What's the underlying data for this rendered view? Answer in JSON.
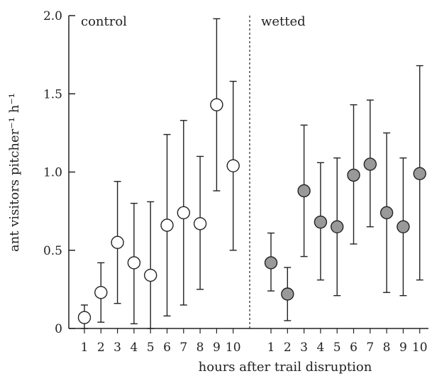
{
  "chart_data": {
    "type": "scatter",
    "xlabel": "hours after trail disruption",
    "ylabel": "ant visitors pitcher⁻¹ h⁻¹",
    "ylim": [
      0,
      2.0
    ],
    "yticks": [
      "0",
      "0.5",
      "1.0",
      "1.5",
      "2.0"
    ],
    "grid": false,
    "divider": "dotted",
    "panels": [
      {
        "name": "control",
        "marker_color": "#ffffff",
        "x": [
          1,
          2,
          3,
          4,
          5,
          6,
          7,
          8,
          9,
          10
        ],
        "y": [
          0.07,
          0.23,
          0.55,
          0.42,
          0.34,
          0.66,
          0.74,
          0.67,
          1.43,
          1.04
        ],
        "lower": [
          0.0,
          0.04,
          0.16,
          0.03,
          0.0,
          0.08,
          0.15,
          0.25,
          0.88,
          0.5
        ],
        "upper": [
          0.15,
          0.42,
          0.94,
          0.8,
          0.81,
          1.24,
          1.33,
          1.1,
          1.98,
          1.58
        ]
      },
      {
        "name": "wetted",
        "marker_color": "#999999",
        "x": [
          1,
          2,
          3,
          4,
          5,
          6,
          7,
          8,
          9,
          10
        ],
        "y": [
          0.42,
          0.22,
          0.88,
          0.68,
          0.65,
          0.98,
          1.05,
          0.74,
          0.65,
          0.99
        ],
        "lower": [
          0.24,
          0.05,
          0.46,
          0.31,
          0.21,
          0.54,
          0.65,
          0.23,
          0.21,
          0.31
        ],
        "upper": [
          0.61,
          0.39,
          1.3,
          1.06,
          1.09,
          1.43,
          1.46,
          1.25,
          1.09,
          1.68
        ]
      }
    ]
  }
}
